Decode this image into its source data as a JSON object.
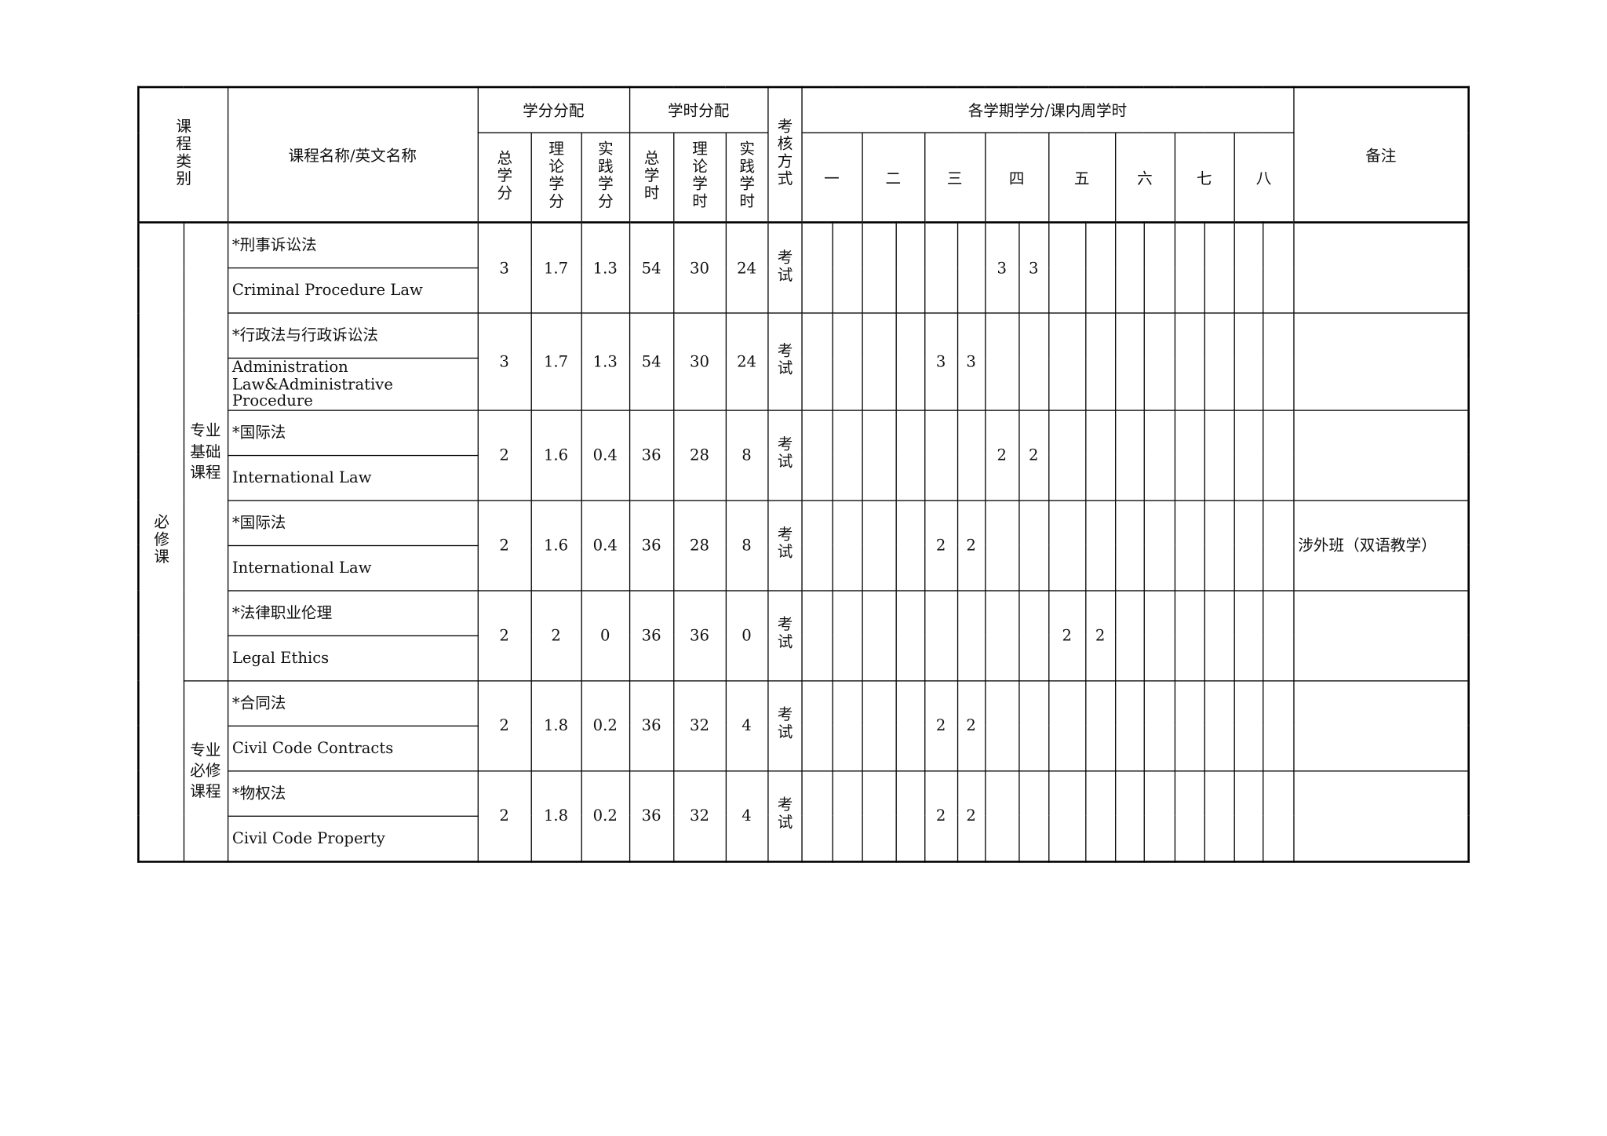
{
  "header": {
    "category": "课程类别",
    "name": "课程名称/英文名称",
    "credit_group": "学分分配",
    "hours_group": "学时分配",
    "exam": "考核方式",
    "semester_group": "各学期学分/课内周学时",
    "remark": "备注",
    "credit_cols": [
      "总学分",
      "理论学分",
      "实践学分"
    ],
    "hours_cols": [
      "总学时",
      "理论学时",
      "实践学时"
    ],
    "semesters": [
      "一",
      "二",
      "三",
      "四",
      "五",
      "六",
      "七",
      "八"
    ]
  },
  "groups": {
    "main": "必修课",
    "basic": "专业基础课程",
    "required": "专业必修课程"
  },
  "courses": [
    {
      "zh": "*刑事诉讼法",
      "en": "Criminal Procedure Law",
      "credits": "3",
      "theory_credits": "1.7",
      "practice_credits": "1.3",
      "hours": "54",
      "theory_hours": "30",
      "practice_hours": "24",
      "exam": "考试",
      "semester": 4,
      "sem_values": [
        "3",
        "3"
      ],
      "remark": ""
    },
    {
      "zh": "*行政法与行政诉讼法",
      "en": "Administration Law&Administrative Procedure",
      "credits": "3",
      "theory_credits": "1.7",
      "practice_credits": "1.3",
      "hours": "54",
      "theory_hours": "30",
      "practice_hours": "24",
      "exam": "考试",
      "semester": 3,
      "sem_values": [
        "3",
        "3"
      ],
      "remark": ""
    },
    {
      "zh": "*国际法",
      "en": "International Law",
      "credits": "2",
      "theory_credits": "1.6",
      "practice_credits": "0.4",
      "hours": "36",
      "theory_hours": "28",
      "practice_hours": "8",
      "exam": "考试",
      "semester": 4,
      "sem_values": [
        "2",
        "2"
      ],
      "remark": ""
    },
    {
      "zh": "*国际法",
      "en": "International Law",
      "credits": "2",
      "theory_credits": "1.6",
      "practice_credits": "0.4",
      "hours": "36",
      "theory_hours": "28",
      "practice_hours": "8",
      "exam": "考试",
      "semester": 3,
      "sem_values": [
        "2",
        "2"
      ],
      "remark": "涉外班（双语教学）"
    },
    {
      "zh": "*法律职业伦理",
      "en": "Legal Ethics",
      "credits": "2",
      "theory_credits": "2",
      "practice_credits": "0",
      "hours": "36",
      "theory_hours": "36",
      "practice_hours": "0",
      "exam": "考试",
      "semester": 5,
      "sem_values": [
        "2",
        "2"
      ],
      "remark": ""
    },
    {
      "zh": "*合同法",
      "en": "Civil Code Contracts",
      "credits": "2",
      "theory_credits": "1.8",
      "practice_credits": "0.2",
      "hours": "36",
      "theory_hours": "32",
      "practice_hours": "4",
      "exam": "考试",
      "semester": 3,
      "sem_values": [
        "2",
        "2"
      ],
      "remark": ""
    },
    {
      "zh": "*物权法",
      "en": "Civil Code Property",
      "credits": "2",
      "theory_credits": "1.8",
      "practice_credits": "0.2",
      "hours": "36",
      "theory_hours": "32",
      "practice_hours": "4",
      "exam": "考试",
      "semester": 3,
      "sem_values": [
        "2",
        "2"
      ],
      "remark": ""
    }
  ]
}
